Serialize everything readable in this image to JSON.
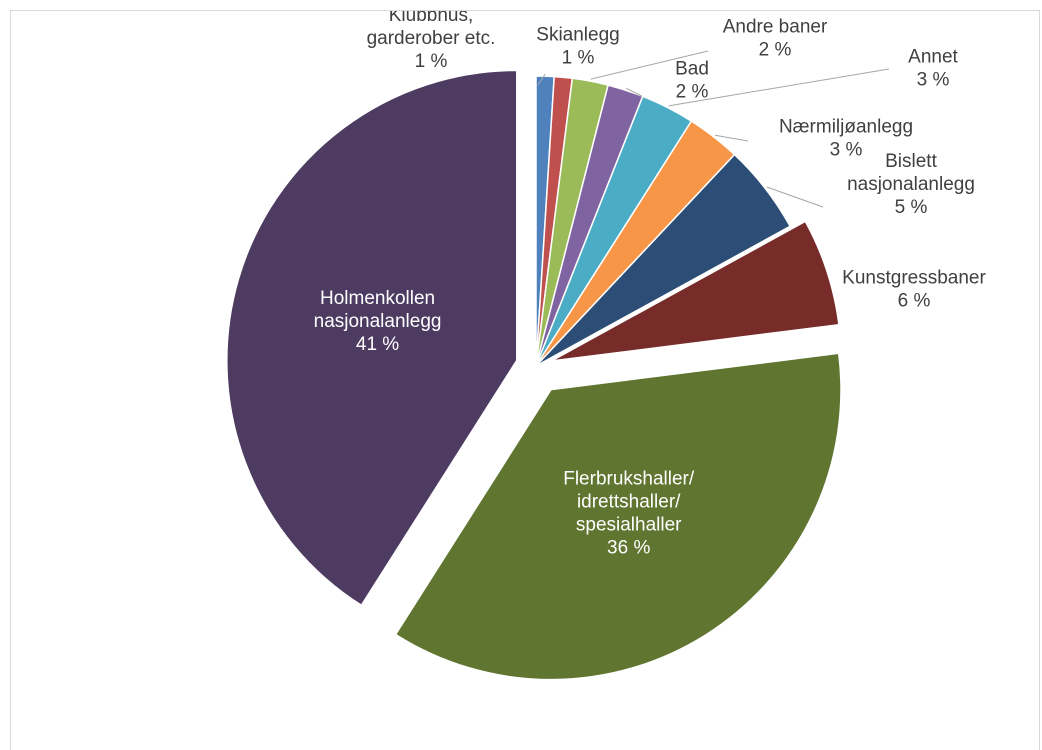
{
  "chart_data": {
    "type": "pie",
    "exploded": true,
    "legend": "none",
    "slices": [
      {
        "label_lines": [
          "Klubbhus,",
          "garderober etc."
        ],
        "value": 1,
        "value_label": "1 %",
        "color": "#4f81bd"
      },
      {
        "label_lines": [
          "Skianlegg"
        ],
        "value": 1,
        "value_label": "1 %",
        "color": "#c0504d"
      },
      {
        "label_lines": [
          "Andre baner"
        ],
        "value": 2,
        "value_label": "2 %",
        "color": "#9bbb59"
      },
      {
        "label_lines": [
          "Bad"
        ],
        "value": 2,
        "value_label": "2 %",
        "color": "#8064a2"
      },
      {
        "label_lines": [
          "Annet"
        ],
        "value": 3,
        "value_label": "3 %",
        "color": "#4bacc6"
      },
      {
        "label_lines": [
          "Nærmiljøanlegg"
        ],
        "value": 3,
        "value_label": "3 %",
        "color": "#f79646"
      },
      {
        "label_lines": [
          "Bislett",
          "nasjonalanlegg"
        ],
        "value": 5,
        "value_label": "5 %",
        "color": "#2c4d75"
      },
      {
        "label_lines": [
          "Kunstgressbaner"
        ],
        "value": 6,
        "value_label": "6 %",
        "color": "#772c2a"
      },
      {
        "label_lines": [
          "Flerbrukshaller/",
          "idrettshaller/",
          "spesialhaller"
        ],
        "value": 36,
        "value_label": "36 %",
        "color": "#5f7530"
      },
      {
        "label_lines": [
          "Holmenkollen",
          "nasjonalanlegg"
        ],
        "value": 41,
        "value_label": "41 %",
        "color": "#4d3b62"
      }
    ]
  }
}
